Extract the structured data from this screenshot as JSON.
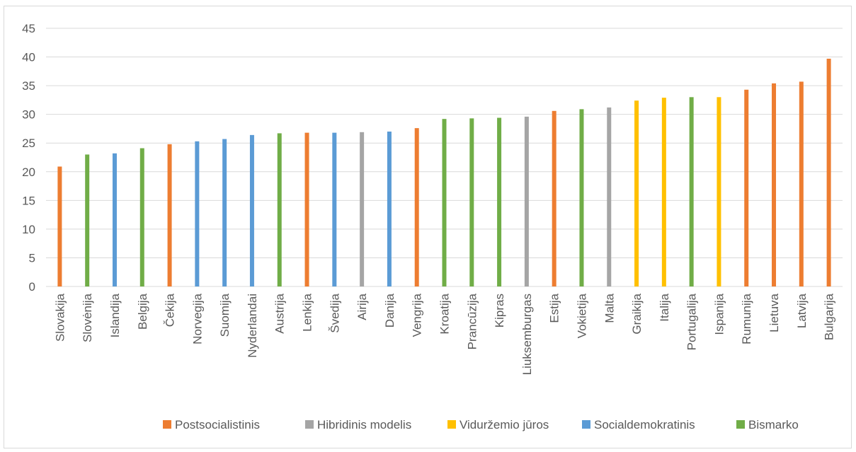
{
  "chart_data": {
    "type": "bar",
    "ylim": [
      0,
      45
    ],
    "yticks": [
      0,
      5,
      10,
      15,
      20,
      25,
      30,
      35,
      40,
      45
    ],
    "grid": true,
    "legend_position": "bottom",
    "categories": [
      "Slovakija",
      "Slovėnija",
      "Islandija",
      "Belgija",
      "Čekija",
      "Norvegija",
      "Suomija",
      "Nyderlandai",
      "Austrija",
      "Lenkija",
      "Švedija",
      "Airija",
      "Danija",
      "Vengrija",
      "Kroatija",
      "Prancūzija",
      "Kipras",
      "Liuksemburgas",
      "Estija",
      "Vokietija",
      "Malta",
      "Graikija",
      "Italija",
      "Portugalija",
      "Ispanija",
      "Rumunija",
      "Lietuva",
      "Latvija",
      "Bulgarija"
    ],
    "values": [
      20.9,
      23.0,
      23.2,
      24.1,
      24.8,
      25.3,
      25.7,
      26.4,
      26.7,
      26.8,
      26.8,
      26.9,
      27.0,
      27.6,
      29.2,
      29.3,
      29.4,
      29.6,
      30.6,
      30.9,
      31.2,
      32.4,
      32.9,
      33.0,
      33.0,
      34.3,
      35.4,
      35.7,
      39.7
    ],
    "groups": [
      "Postsocialistinis",
      "Bismarko",
      "Socialdemokratinis",
      "Bismarko",
      "Postsocialistinis",
      "Socialdemokratinis",
      "Socialdemokratinis",
      "Socialdemokratinis",
      "Bismarko",
      "Postsocialistinis",
      "Socialdemokratinis",
      "Hibridinis modelis",
      "Socialdemokratinis",
      "Postsocialistinis",
      "Bismarko",
      "Bismarko",
      "Bismarko",
      "Hibridinis modelis",
      "Postsocialistinis",
      "Bismarko",
      "Hibridinis modelis",
      "Viduržemio jūros",
      "Viduržemio jūros",
      "Bismarko",
      "Viduržemio jūros",
      "Postsocialistinis",
      "Postsocialistinis",
      "Postsocialistinis",
      "Postsocialistinis"
    ],
    "legend": [
      {
        "name": "Postsocialistinis",
        "color": "#ed7d31"
      },
      {
        "name": "Hibridinis modelis",
        "color": "#a5a5a5"
      },
      {
        "name": "Viduržemio jūros",
        "color": "#ffc000"
      },
      {
        "name": "Socialdemokratinis",
        "color": "#5b9bd5"
      },
      {
        "name": "Bismarko",
        "color": "#70ad47"
      }
    ],
    "gridline_color": "#d9d9d9"
  }
}
